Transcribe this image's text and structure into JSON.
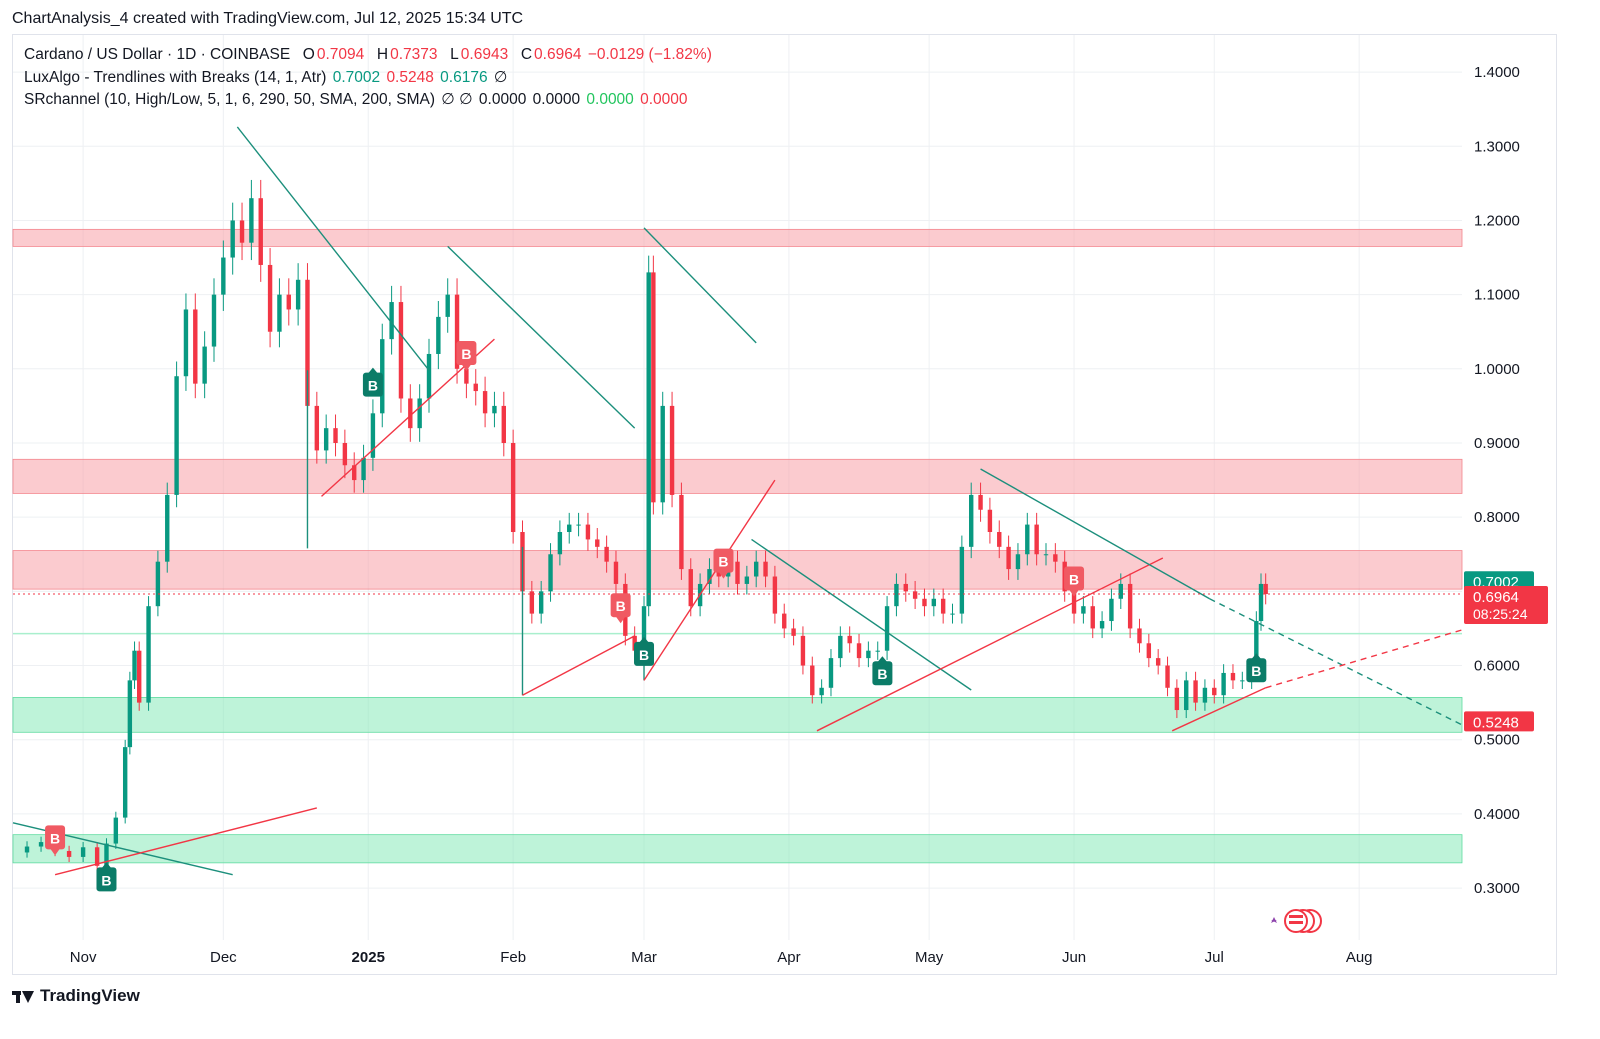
{
  "header": {
    "title": "ChartAnalysis_4 created with TradingView.com, Jul 12, 2025 15:34 UTC"
  },
  "legend": {
    "symbol": "Cardano / US Dollar · 1D · COINBASE",
    "open_label": "O",
    "open": "0.7094",
    "high_label": "H",
    "high": "0.7373",
    "low_label": "L",
    "low": "0.6943",
    "close_label": "C",
    "close": "0.6964",
    "change": "−0.0129 (−1.82%)",
    "indicator1": "LuxAlgo - Trendlines with Breaks (14, 1, Atr)",
    "indicator1_values": [
      "0.7002",
      "0.5248",
      "0.6176"
    ],
    "indicator1_extra": "∅",
    "indicator2": "SRchannel (10, High/Low, 5, 1, 6, 290, 50, SMA, 200, SMA)",
    "indicator2_icons": "∅  ∅",
    "indicator2_values": [
      "0.0000",
      "0.0000",
      "0.0000",
      "0.0000"
    ]
  },
  "footer": {
    "brand": "TradingView"
  },
  "colors": {
    "up": "#089981",
    "down": "#f23645",
    "resistance_zone": "#f7a1a7",
    "support_zone": "#7ee8b4",
    "trend_teal": "#1c8f7c",
    "trend_red": "#f23645"
  },
  "chart_data": {
    "type": "candlestick",
    "title": "Cardano / US Dollar · 1D · COINBASE",
    "ylim": [
      0.23,
      1.45
    ],
    "x_tick_labels": [
      {
        "date": "2024-11-01",
        "label": "Nov"
      },
      {
        "date": "2024-12-01",
        "label": "Dec"
      },
      {
        "date": "2025-01-01",
        "label": "2025"
      },
      {
        "date": "2025-02-01",
        "label": "Feb"
      },
      {
        "date": "2025-03-01",
        "label": "Mar"
      },
      {
        "date": "2025-04-01",
        "label": "Apr"
      },
      {
        "date": "2025-05-01",
        "label": "May"
      },
      {
        "date": "2025-06-01",
        "label": "Jun"
      },
      {
        "date": "2025-07-01",
        "label": "Jul"
      },
      {
        "date": "2025-08-01",
        "label": "Aug"
      }
    ],
    "x_range": [
      "2024-10-17",
      "2025-08-23"
    ],
    "y_ticks": [
      "0.3000",
      "0.4000",
      "0.5000",
      "0.6000",
      "0.7000",
      "0.8000",
      "0.9000",
      "1.0000",
      "1.1000",
      "1.2000",
      "1.3000",
      "1.4000"
    ],
    "price_labels": [
      {
        "value": "0.7002",
        "color": "#089981"
      },
      {
        "value": "0.6964",
        "color": "#f23645",
        "countdown": "08:25:24"
      },
      {
        "value": "0.5248",
        "color": "#f23645"
      }
    ],
    "resistance_zones": [
      [
        1.165,
        1.188
      ],
      [
        0.832,
        0.878
      ],
      [
        0.703,
        0.755
      ]
    ],
    "support_zones": [
      [
        0.51,
        0.557
      ],
      [
        0.334,
        0.372
      ]
    ],
    "close_series": [
      [
        "2024-10-17",
        0.348
      ],
      [
        "2024-10-20",
        0.356
      ],
      [
        "2024-10-23",
        0.362
      ],
      [
        "2024-10-26",
        0.35
      ],
      [
        "2024-10-29",
        0.342
      ],
      [
        "2024-11-01",
        0.355
      ],
      [
        "2024-11-04",
        0.33
      ],
      [
        "2024-11-06",
        0.36
      ],
      [
        "2024-11-08",
        0.395
      ],
      [
        "2024-11-10",
        0.49
      ],
      [
        "2024-11-11",
        0.58
      ],
      [
        "2024-11-12",
        0.62
      ],
      [
        "2024-11-13",
        0.55
      ],
      [
        "2024-11-15",
        0.68
      ],
      [
        "2024-11-17",
        0.74
      ],
      [
        "2024-11-19",
        0.83
      ],
      [
        "2024-11-21",
        0.99
      ],
      [
        "2024-11-23",
        1.08
      ],
      [
        "2024-11-25",
        0.98
      ],
      [
        "2024-11-27",
        1.03
      ],
      [
        "2024-11-29",
        1.1
      ],
      [
        "2024-12-01",
        1.15
      ],
      [
        "2024-12-03",
        1.2
      ],
      [
        "2024-12-05",
        1.17
      ],
      [
        "2024-12-07",
        1.23
      ],
      [
        "2024-12-09",
        1.14
      ],
      [
        "2024-12-11",
        1.05
      ],
      [
        "2024-12-13",
        1.1
      ],
      [
        "2024-12-15",
        1.08
      ],
      [
        "2024-12-17",
        1.12
      ],
      [
        "2024-12-19",
        0.95
      ],
      [
        "2024-12-21",
        0.89
      ],
      [
        "2024-12-23",
        0.92
      ],
      [
        "2024-12-25",
        0.9
      ],
      [
        "2024-12-27",
        0.87
      ],
      [
        "2024-12-29",
        0.85
      ],
      [
        "2024-12-31",
        0.88
      ],
      [
        "2025-01-02",
        0.94
      ],
      [
        "2025-01-04",
        1.04
      ],
      [
        "2025-01-06",
        1.09
      ],
      [
        "2025-01-08",
        0.96
      ],
      [
        "2025-01-10",
        0.92
      ],
      [
        "2025-01-12",
        0.96
      ],
      [
        "2025-01-14",
        1.02
      ],
      [
        "2025-01-16",
        1.07
      ],
      [
        "2025-01-18",
        1.1
      ],
      [
        "2025-01-20",
        1.0
      ],
      [
        "2025-01-22",
        0.98
      ],
      [
        "2025-01-24",
        0.97
      ],
      [
        "2025-01-26",
        0.94
      ],
      [
        "2025-01-28",
        0.95
      ],
      [
        "2025-01-30",
        0.9
      ],
      [
        "2025-02-01",
        0.78
      ],
      [
        "2025-02-03",
        0.7
      ],
      [
        "2025-02-05",
        0.67
      ],
      [
        "2025-02-07",
        0.7
      ],
      [
        "2025-02-09",
        0.75
      ],
      [
        "2025-02-11",
        0.78
      ],
      [
        "2025-02-13",
        0.79
      ],
      [
        "2025-02-15",
        0.79
      ],
      [
        "2025-02-17",
        0.77
      ],
      [
        "2025-02-19",
        0.76
      ],
      [
        "2025-02-21",
        0.74
      ],
      [
        "2025-02-23",
        0.71
      ],
      [
        "2025-02-25",
        0.64
      ],
      [
        "2025-02-27",
        0.62
      ],
      [
        "2025-03-01",
        0.68
      ],
      [
        "2025-03-02",
        1.13
      ],
      [
        "2025-03-03",
        0.82
      ],
      [
        "2025-03-05",
        0.95
      ],
      [
        "2025-03-07",
        0.83
      ],
      [
        "2025-03-09",
        0.73
      ],
      [
        "2025-03-11",
        0.68
      ],
      [
        "2025-03-13",
        0.71
      ],
      [
        "2025-03-15",
        0.73
      ],
      [
        "2025-03-17",
        0.72
      ],
      [
        "2025-03-19",
        0.74
      ],
      [
        "2025-03-21",
        0.71
      ],
      [
        "2025-03-23",
        0.72
      ],
      [
        "2025-03-25",
        0.74
      ],
      [
        "2025-03-27",
        0.72
      ],
      [
        "2025-03-29",
        0.67
      ],
      [
        "2025-03-31",
        0.65
      ],
      [
        "2025-04-02",
        0.64
      ],
      [
        "2025-04-04",
        0.6
      ],
      [
        "2025-04-06",
        0.56
      ],
      [
        "2025-04-08",
        0.57
      ],
      [
        "2025-04-10",
        0.61
      ],
      [
        "2025-04-12",
        0.64
      ],
      [
        "2025-04-14",
        0.63
      ],
      [
        "2025-04-16",
        0.61
      ],
      [
        "2025-04-18",
        0.62
      ],
      [
        "2025-04-20",
        0.62
      ],
      [
        "2025-04-22",
        0.68
      ],
      [
        "2025-04-24",
        0.71
      ],
      [
        "2025-04-26",
        0.7
      ],
      [
        "2025-04-28",
        0.69
      ],
      [
        "2025-04-30",
        0.68
      ],
      [
        "2025-05-02",
        0.69
      ],
      [
        "2025-05-04",
        0.67
      ],
      [
        "2025-05-06",
        0.67
      ],
      [
        "2025-05-08",
        0.76
      ],
      [
        "2025-05-10",
        0.83
      ],
      [
        "2025-05-12",
        0.81
      ],
      [
        "2025-05-14",
        0.78
      ],
      [
        "2025-05-16",
        0.76
      ],
      [
        "2025-05-18",
        0.73
      ],
      [
        "2025-05-20",
        0.75
      ],
      [
        "2025-05-22",
        0.79
      ],
      [
        "2025-05-24",
        0.75
      ],
      [
        "2025-05-26",
        0.75
      ],
      [
        "2025-05-28",
        0.74
      ],
      [
        "2025-05-30",
        0.7
      ],
      [
        "2025-06-01",
        0.67
      ],
      [
        "2025-06-03",
        0.68
      ],
      [
        "2025-06-05",
        0.65
      ],
      [
        "2025-06-07",
        0.66
      ],
      [
        "2025-06-09",
        0.69
      ],
      [
        "2025-06-11",
        0.71
      ],
      [
        "2025-06-13",
        0.65
      ],
      [
        "2025-06-15",
        0.63
      ],
      [
        "2025-06-17",
        0.61
      ],
      [
        "2025-06-19",
        0.6
      ],
      [
        "2025-06-21",
        0.57
      ],
      [
        "2025-06-23",
        0.54
      ],
      [
        "2025-06-25",
        0.58
      ],
      [
        "2025-06-27",
        0.55
      ],
      [
        "2025-06-29",
        0.57
      ],
      [
        "2025-07-01",
        0.56
      ],
      [
        "2025-07-03",
        0.59
      ],
      [
        "2025-07-05",
        0.58
      ],
      [
        "2025-07-07",
        0.58
      ],
      [
        "2025-07-09",
        0.59
      ],
      [
        "2025-07-10",
        0.66
      ],
      [
        "2025-07-11",
        0.71
      ],
      [
        "2025-07-12",
        0.6964
      ]
    ],
    "signals": [
      {
        "date": "2024-10-26",
        "price": 0.367,
        "label": "B",
        "type": "down"
      },
      {
        "date": "2024-11-06",
        "price": 0.313,
        "label": "B",
        "type": "up"
      },
      {
        "date": "2025-01-02",
        "price": 0.98,
        "label": "B",
        "type": "up"
      },
      {
        "date": "2025-01-22",
        "price": 1.02,
        "label": "B",
        "type": "down"
      },
      {
        "date": "2025-02-24",
        "price": 0.68,
        "label": "B",
        "type": "down"
      },
      {
        "date": "2025-03-01",
        "price": 0.617,
        "label": "B",
        "type": "up"
      },
      {
        "date": "2025-03-18",
        "price": 0.74,
        "label": "B",
        "type": "down"
      },
      {
        "date": "2025-04-21",
        "price": 0.591,
        "label": "B",
        "type": "up"
      },
      {
        "date": "2025-06-01",
        "price": 0.716,
        "label": "B",
        "type": "down"
      },
      {
        "date": "2025-07-10",
        "price": 0.595,
        "label": "B",
        "type": "up"
      }
    ],
    "trendlines": [
      {
        "color": "teal",
        "from": [
          "2024-10-17",
          0.388
        ],
        "to": [
          "2024-12-03",
          0.318
        ]
      },
      {
        "color": "red",
        "from": [
          "2024-10-26",
          0.318
        ],
        "to": [
          "2024-12-21",
          0.408
        ]
      },
      {
        "color": "teal",
        "from": [
          "2024-12-04",
          1.326
        ],
        "to": [
          "2025-01-14",
          0.998
        ]
      },
      {
        "color": "teal",
        "from": [
          "2024-12-19",
          0.758
        ],
        "to": [
          "2024-12-19",
          0.998
        ]
      },
      {
        "color": "red",
        "from": [
          "2024-12-22",
          0.828
        ],
        "to": [
          "2025-01-28",
          1.04
        ]
      },
      {
        "color": "teal",
        "from": [
          "2025-01-18",
          1.165
        ],
        "to": [
          "2025-02-27",
          0.92
        ]
      },
      {
        "color": "teal",
        "from": [
          "2025-02-03",
          0.56
        ],
        "to": [
          "2025-02-03",
          0.76
        ]
      },
      {
        "color": "red",
        "from": [
          "2025-02-03",
          0.56
        ],
        "to": [
          "2025-02-27",
          0.64
        ]
      },
      {
        "color": "teal",
        "from": [
          "2025-03-01",
          1.19
        ],
        "to": [
          "2025-03-25",
          1.035
        ]
      },
      {
        "color": "teal",
        "from": [
          "2025-03-01",
          0.58
        ],
        "to": [
          "2025-03-01",
          0.64
        ]
      },
      {
        "color": "red",
        "from": [
          "2025-03-01",
          0.58
        ],
        "to": [
          "2025-03-29",
          0.85
        ]
      },
      {
        "color": "teal",
        "from": [
          "2025-03-24",
          0.77
        ],
        "to": [
          "2025-05-10",
          0.567
        ]
      },
      {
        "color": "red",
        "from": [
          "2025-04-07",
          0.512
        ],
        "to": [
          "2025-06-20",
          0.745
        ]
      },
      {
        "color": "teal",
        "from": [
          "2025-05-12",
          0.865
        ],
        "to": [
          "2025-06-30",
          0.69
        ]
      },
      {
        "color": "teal",
        "dashed": true,
        "from": [
          "2025-06-30",
          0.69
        ],
        "to": [
          "2025-08-23",
          0.52
        ]
      },
      {
        "color": "red",
        "from": [
          "2025-06-22",
          0.512
        ],
        "to": [
          "2025-07-12",
          0.57
        ]
      },
      {
        "color": "red",
        "dashed": true,
        "from": [
          "2025-07-12",
          0.57
        ],
        "to": [
          "2025-08-23",
          0.648
        ]
      }
    ]
  }
}
